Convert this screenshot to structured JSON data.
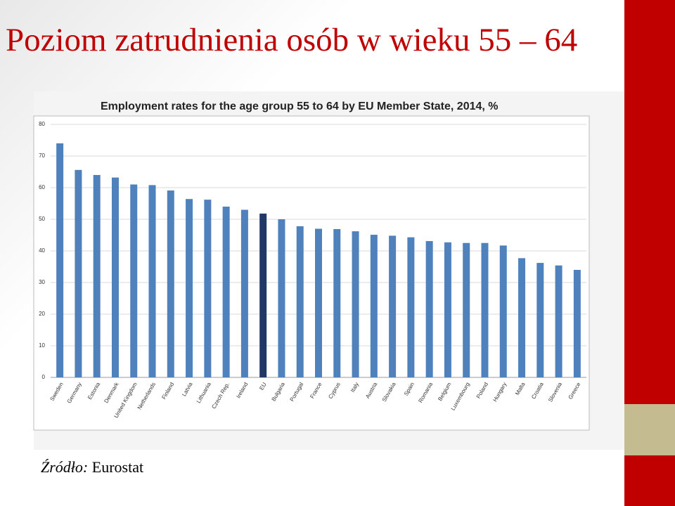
{
  "slide_title": "Poziom zatrudnienia osób w wieku 55 – 64",
  "chart_data": {
    "type": "bar",
    "title": "Employment rates for the age group 55 to 64 by EU Member State, 2014, %",
    "categories": [
      "Sweden",
      "Germany",
      "Estonia",
      "Denmark",
      "United Kingdom",
      "Netherlands",
      "Finland",
      "Latvia",
      "Lithuania",
      "Czech Rep.",
      "Ireland",
      "EU",
      "Bulgaria",
      "Portugal",
      "France",
      "Cyprus",
      "Italy",
      "Austria",
      "Slovakia",
      "Spain",
      "Romania",
      "Belgium",
      "Luxembourg",
      "Poland",
      "Hungary",
      "Malta",
      "Croatia",
      "Slovenia",
      "Greece"
    ],
    "values": [
      74.0,
      65.6,
      64.0,
      63.2,
      61.0,
      60.8,
      59.1,
      56.4,
      56.2,
      54.0,
      53.0,
      51.8,
      50.0,
      47.8,
      47.0,
      46.9,
      46.2,
      45.1,
      44.8,
      44.3,
      43.1,
      42.7,
      42.5,
      42.5,
      41.7,
      37.7,
      36.2,
      35.4,
      34.0
    ],
    "bar_colors": [
      "#4f81bd",
      "#4f81bd",
      "#4f81bd",
      "#4f81bd",
      "#4f81bd",
      "#4f81bd",
      "#4f81bd",
      "#4f81bd",
      "#4f81bd",
      "#4f81bd",
      "#4f81bd",
      "#1f3864",
      "#4f81bd",
      "#4f81bd",
      "#4f81bd",
      "#4f81bd",
      "#4f81bd",
      "#4f81bd",
      "#4f81bd",
      "#4f81bd",
      "#4f81bd",
      "#4f81bd",
      "#4f81bd",
      "#4f81bd",
      "#4f81bd",
      "#4f81bd",
      "#4f81bd",
      "#4f81bd",
      "#4f81bd"
    ],
    "ylim": [
      0,
      80
    ],
    "yticks": [
      0,
      10,
      20,
      30,
      40,
      50,
      60,
      70,
      80
    ],
    "grid": true
  },
  "source": {
    "label": "Źródło:",
    "text": "Eurostat"
  }
}
